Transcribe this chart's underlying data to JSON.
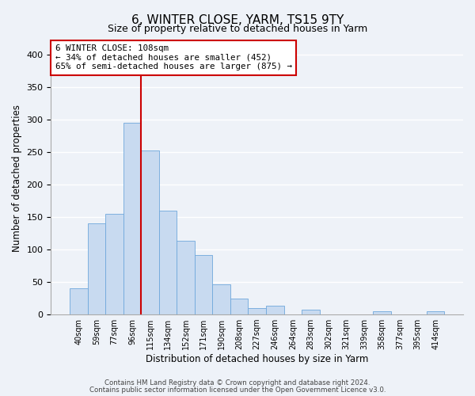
{
  "title": "6, WINTER CLOSE, YARM, TS15 9TY",
  "subtitle": "Size of property relative to detached houses in Yarm",
  "xlabel": "Distribution of detached houses by size in Yarm",
  "ylabel": "Number of detached properties",
  "categories": [
    "40sqm",
    "59sqm",
    "77sqm",
    "96sqm",
    "115sqm",
    "134sqm",
    "152sqm",
    "171sqm",
    "190sqm",
    "208sqm",
    "227sqm",
    "246sqm",
    "264sqm",
    "283sqm",
    "302sqm",
    "321sqm",
    "339sqm",
    "358sqm",
    "377sqm",
    "395sqm",
    "414sqm"
  ],
  "values": [
    40,
    140,
    155,
    295,
    253,
    160,
    113,
    92,
    46,
    25,
    10,
    13,
    0,
    8,
    0,
    0,
    0,
    5,
    0,
    0,
    5
  ],
  "bar_color": "#c8daf0",
  "bar_edge_color": "#6fa8dc",
  "ylim": [
    0,
    420
  ],
  "yticks": [
    0,
    50,
    100,
    150,
    200,
    250,
    300,
    350,
    400
  ],
  "vline_color": "#cc0000",
  "annotation_line1": "6 WINTER CLOSE: 108sqm",
  "annotation_line2": "← 34% of detached houses are smaller (452)",
  "annotation_line3": "65% of semi-detached houses are larger (875) →",
  "annotation_box_color": "#cc0000",
  "footnote1": "Contains HM Land Registry data © Crown copyright and database right 2024.",
  "footnote2": "Contains public sector information licensed under the Open Government Licence v3.0.",
  "background_color": "#eef2f8",
  "plot_background": "#eef2f8",
  "grid_color": "#ffffff"
}
